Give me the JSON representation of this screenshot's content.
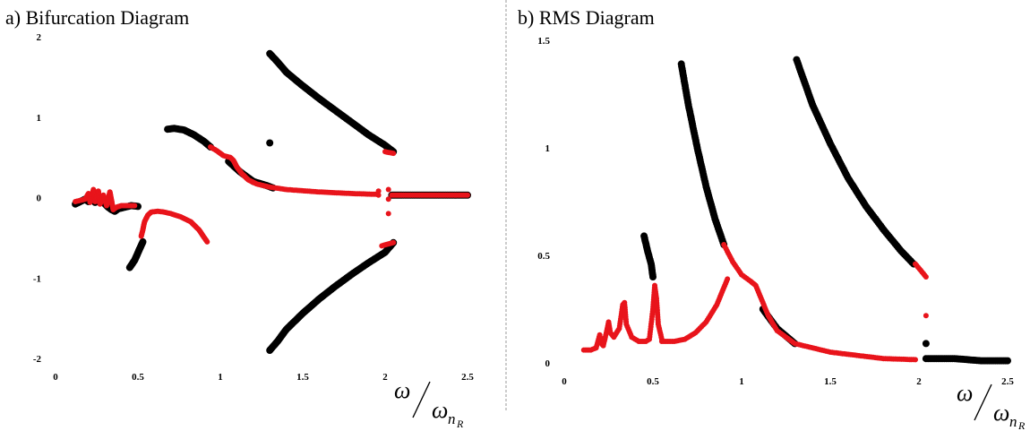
{
  "colors": {
    "stable": "#e8141b",
    "unstable": "#000000",
    "divider": "#999999"
  },
  "chart_data": [
    {
      "type": "scatter",
      "title": "a) Bifurcation Diagram",
      "xlabel": {
        "main": "ω",
        "den": "ω",
        "sub": "n",
        "subsub": "R"
      },
      "ylabel": "",
      "xlim": [
        0,
        2.5
      ],
      "ylim": [
        -2,
        2
      ],
      "xticks": [
        "0",
        "0.5",
        "1",
        "1.5",
        "2",
        "2.5"
      ],
      "yticks": [
        "-2",
        "-1",
        "0",
        "1",
        "2"
      ],
      "series": [
        {
          "color": "unstable",
          "size": 4,
          "segments": [
            [
              [
                0.68,
                0.85
              ],
              [
                0.72,
                0.86
              ],
              [
                0.78,
                0.84
              ],
              [
                0.84,
                0.78
              ],
              [
                0.9,
                0.7
              ],
              [
                0.94,
                0.63
              ]
            ],
            [
              [
                0.45,
                -0.87
              ],
              [
                0.48,
                -0.78
              ],
              [
                0.51,
                -0.64
              ],
              [
                0.53,
                -0.55
              ]
            ],
            [
              [
                0.12,
                -0.08
              ],
              [
                0.14,
                -0.06
              ],
              [
                0.16,
                -0.04
              ],
              [
                0.18,
                -0.02
              ],
              [
                0.2,
                -0.05
              ],
              [
                0.22,
                0.02
              ],
              [
                0.24,
                -0.06
              ],
              [
                0.26,
                -0.03
              ],
              [
                0.28,
                0.0
              ],
              [
                0.3,
                -0.08
              ],
              [
                0.32,
                -0.12
              ],
              [
                0.34,
                -0.15
              ],
              [
                0.36,
                -0.17
              ],
              [
                0.38,
                -0.14
              ],
              [
                0.42,
                -0.12
              ],
              [
                0.46,
                -0.1
              ],
              [
                0.5,
                -0.11
              ]
            ],
            [
              [
                1.3,
                1.79
              ],
              [
                1.35,
                1.68
              ],
              [
                1.4,
                1.56
              ],
              [
                1.5,
                1.39
              ],
              [
                1.6,
                1.23
              ],
              [
                1.7,
                1.08
              ],
              [
                1.8,
                0.93
              ],
              [
                1.9,
                0.78
              ],
              [
                2.0,
                0.65
              ],
              [
                2.05,
                0.57
              ]
            ],
            [
              [
                1.3,
                -1.9
              ],
              [
                1.35,
                -1.78
              ],
              [
                1.4,
                -1.64
              ],
              [
                1.5,
                -1.44
              ],
              [
                1.6,
                -1.26
              ],
              [
                1.7,
                -1.1
              ],
              [
                1.8,
                -0.95
              ],
              [
                1.9,
                -0.81
              ],
              [
                2.0,
                -0.68
              ],
              [
                2.05,
                -0.56
              ]
            ],
            [
              [
                2.04,
                0.03
              ],
              [
                2.1,
                0.03
              ],
              [
                2.2,
                0.03
              ],
              [
                2.3,
                0.03
              ],
              [
                2.4,
                0.03
              ],
              [
                2.5,
                0.03
              ]
            ],
            [
              [
                1.05,
                0.45
              ],
              [
                1.12,
                0.32
              ],
              [
                1.2,
                0.2
              ],
              [
                1.28,
                0.15
              ],
              [
                1.32,
                0.12
              ]
            ]
          ],
          "points": [
            [
              1.3,
              0.68
            ]
          ]
        },
        {
          "color": "stable",
          "size": 3,
          "segments": [
            [
              [
                0.94,
                0.63
              ],
              [
                0.98,
                0.58
              ],
              [
                1.02,
                0.52
              ],
              [
                1.06,
                0.5
              ],
              [
                1.08,
                0.46
              ],
              [
                1.1,
                0.38
              ],
              [
                1.13,
                0.3
              ],
              [
                1.17,
                0.22
              ],
              [
                1.22,
                0.17
              ],
              [
                1.3,
                0.13
              ],
              [
                1.4,
                0.1
              ],
              [
                1.6,
                0.07
              ],
              [
                1.8,
                0.05
              ],
              [
                1.95,
                0.04
              ]
            ],
            [
              [
                0.12,
                -0.05
              ],
              [
                0.14,
                -0.04
              ],
              [
                0.16,
                -0.03
              ],
              [
                0.18,
                -0.02
              ],
              [
                0.2,
                0.05
              ],
              [
                0.21,
                -0.06
              ],
              [
                0.23,
                0.1
              ],
              [
                0.24,
                -0.05
              ],
              [
                0.26,
                0.08
              ],
              [
                0.27,
                -0.08
              ],
              [
                0.29,
                0.03
              ],
              [
                0.31,
                -0.1
              ],
              [
                0.33,
                0.07
              ],
              [
                0.35,
                -0.15
              ],
              [
                0.37,
                -0.12
              ],
              [
                0.4,
                -0.1
              ],
              [
                0.44,
                -0.1
              ],
              [
                0.48,
                -0.1
              ]
            ],
            [
              [
                0.52,
                -0.48
              ],
              [
                0.53,
                -0.4
              ],
              [
                0.54,
                -0.3
              ],
              [
                0.56,
                -0.22
              ],
              [
                0.58,
                -0.18
              ],
              [
                0.62,
                -0.17
              ],
              [
                0.66,
                -0.18
              ],
              [
                0.7,
                -0.2
              ],
              [
                0.76,
                -0.24
              ],
              [
                0.82,
                -0.3
              ],
              [
                0.87,
                -0.4
              ],
              [
                0.92,
                -0.55
              ]
            ],
            [
              [
                2.0,
                0.57
              ],
              [
                2.05,
                0.55
              ]
            ],
            [
              [
                1.98,
                -0.6
              ],
              [
                2.05,
                -0.56
              ]
            ],
            [
              [
                2.04,
                0.03
              ],
              [
                2.1,
                0.03
              ],
              [
                2.2,
                0.03
              ],
              [
                2.3,
                0.03
              ],
              [
                2.4,
                0.03
              ],
              [
                2.5,
                0.03
              ]
            ]
          ],
          "points": [
            [
              1.96,
              0.08
            ],
            [
              1.96,
              0.03
            ],
            [
              2.02,
              0.1
            ],
            [
              2.02,
              -0.02
            ],
            [
              2.02,
              -0.2
            ]
          ]
        }
      ]
    },
    {
      "type": "scatter",
      "title": "b) RMS Diagram",
      "xlabel": {
        "main": "ω",
        "den": "ω",
        "sub": "n",
        "subsub": "R"
      },
      "ylabel": "",
      "xlim": [
        0,
        2.5
      ],
      "ylim": [
        0,
        1.5
      ],
      "xticks": [
        "0",
        "0.5",
        "1",
        "1.5",
        "2",
        "2.5"
      ],
      "yticks": [
        "0",
        "0.5",
        "1",
        "1.5"
      ],
      "series": [
        {
          "color": "unstable",
          "size": 4,
          "segments": [
            [
              [
                0.45,
                0.59
              ],
              [
                0.47,
                0.52
              ],
              [
                0.49,
                0.46
              ],
              [
                0.5,
                0.4
              ]
            ],
            [
              [
                0.66,
                1.39
              ],
              [
                0.7,
                1.2
              ],
              [
                0.75,
                1.0
              ],
              [
                0.8,
                0.82
              ],
              [
                0.85,
                0.67
              ],
              [
                0.9,
                0.55
              ]
            ],
            [
              [
                1.31,
                1.41
              ],
              [
                1.4,
                1.2
              ],
              [
                1.5,
                1.02
              ],
              [
                1.6,
                0.86
              ],
              [
                1.7,
                0.73
              ],
              [
                1.8,
                0.62
              ],
              [
                1.9,
                0.52
              ],
              [
                1.97,
                0.46
              ]
            ],
            [
              [
                2.04,
                0.02
              ],
              [
                2.2,
                0.02
              ],
              [
                2.35,
                0.01
              ],
              [
                2.5,
                0.01
              ]
            ],
            [
              [
                1.12,
                0.25
              ],
              [
                1.2,
                0.16
              ],
              [
                1.3,
                0.09
              ]
            ]
          ],
          "points": [
            [
              2.04,
              0.09
            ]
          ]
        },
        {
          "color": "stable",
          "size": 3,
          "segments": [
            [
              [
                0.9,
                0.55
              ],
              [
                0.95,
                0.47
              ],
              [
                1.0,
                0.41
              ],
              [
                1.05,
                0.38
              ],
              [
                1.08,
                0.36
              ],
              [
                1.1,
                0.32
              ],
              [
                1.15,
                0.22
              ],
              [
                1.2,
                0.15
              ],
              [
                1.3,
                0.09
              ],
              [
                1.5,
                0.05
              ],
              [
                1.8,
                0.02
              ],
              [
                1.98,
                0.015
              ]
            ],
            [
              [
                0.11,
                0.06
              ],
              [
                0.15,
                0.06
              ],
              [
                0.18,
                0.07
              ],
              [
                0.19,
                0.1
              ],
              [
                0.2,
                0.13
              ],
              [
                0.21,
                0.09
              ],
              [
                0.22,
                0.08
              ],
              [
                0.24,
                0.15
              ],
              [
                0.25,
                0.19
              ],
              [
                0.26,
                0.14
              ],
              [
                0.28,
                0.12
              ],
              [
                0.31,
                0.16
              ],
              [
                0.33,
                0.27
              ],
              [
                0.34,
                0.28
              ],
              [
                0.35,
                0.18
              ],
              [
                0.38,
                0.12
              ],
              [
                0.42,
                0.1
              ],
              [
                0.46,
                0.1
              ],
              [
                0.48,
                0.11
              ],
              [
                0.5,
                0.25
              ],
              [
                0.51,
                0.36
              ],
              [
                0.52,
                0.3
              ],
              [
                0.53,
                0.18
              ],
              [
                0.55,
                0.11
              ]
            ],
            [
              [
                0.55,
                0.1
              ],
              [
                0.62,
                0.1
              ],
              [
                0.68,
                0.11
              ],
              [
                0.74,
                0.14
              ],
              [
                0.8,
                0.19
              ],
              [
                0.86,
                0.27
              ],
              [
                0.9,
                0.35
              ],
              [
                0.92,
                0.39
              ]
            ],
            [
              [
                1.98,
                0.46
              ],
              [
                2.04,
                0.4
              ]
            ]
          ],
          "points": [
            [
              2.04,
              0.22
            ]
          ]
        }
      ]
    }
  ]
}
